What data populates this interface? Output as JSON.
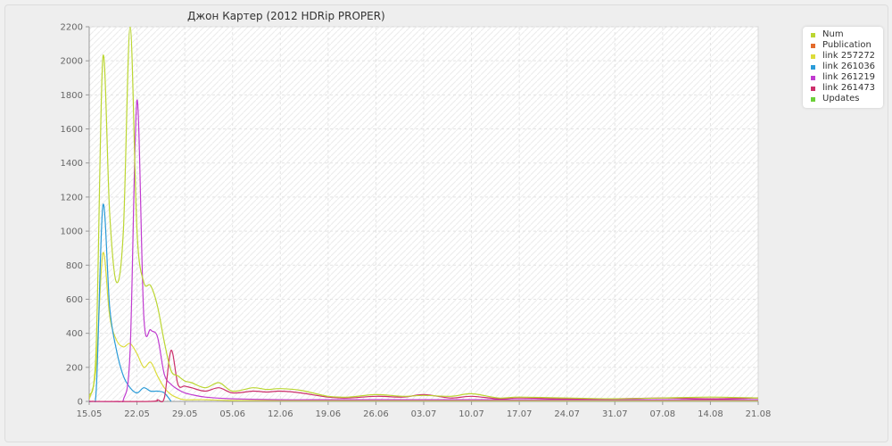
{
  "chart_data": {
    "type": "line",
    "title": "Джон Картер (2012 HDRip PROPER)",
    "xlabel": "",
    "ylabel": "",
    "x_tick_labels": [
      "15.05",
      "22.05",
      "29.05",
      "05.06",
      "12.06",
      "19.06",
      "26.06",
      "03.07",
      "10.07",
      "17.07",
      "24.07",
      "31.07",
      "07.08",
      "14.08",
      "21.08"
    ],
    "y_ticks": [
      0,
      200,
      400,
      600,
      800,
      1000,
      1200,
      1400,
      1600,
      1800,
      2000,
      2200
    ],
    "ylim": [
      0,
      2200
    ],
    "x_domain": [
      "15.05",
      "21.08"
    ],
    "grid": true,
    "legend_position": "top-right",
    "series": [
      {
        "name": "Num",
        "color": "#bbd631",
        "x": [
          "15.05",
          "16.05",
          "17.05",
          "18.05",
          "19.05",
          "20.05",
          "21.05",
          "22.05",
          "23.05",
          "24.05",
          "25.05",
          "26.05",
          "27.05",
          "28.05",
          "29.05",
          "30.05",
          "01.06",
          "03.06",
          "05.06",
          "08.06",
          "10.06",
          "12.06",
          "15.06",
          "19.06",
          "22.06",
          "26.06",
          "30.06",
          "03.07",
          "07.07",
          "10.07",
          "14.07",
          "17.07",
          "24.07",
          "31.07",
          "07.08",
          "14.08",
          "21.08"
        ],
        "values": [
          30,
          300,
          2020,
          1100,
          700,
          1000,
          2200,
          1000,
          700,
          680,
          560,
          350,
          180,
          150,
          120,
          110,
          80,
          110,
          60,
          80,
          70,
          75,
          65,
          30,
          25,
          40,
          30,
          35,
          30,
          45,
          20,
          25,
          20,
          15,
          20,
          25,
          20
        ]
      },
      {
        "name": "Publication",
        "color": "#e36b2c",
        "x": [],
        "values": []
      },
      {
        "name": "link 257272",
        "color": "#dcdc3a",
        "x": [
          "15.05",
          "16.05",
          "17.05",
          "18.05",
          "19.05",
          "20.05",
          "21.05",
          "22.05",
          "23.05",
          "24.05",
          "25.05",
          "26.05",
          "27.05",
          "28.05",
          "29.05",
          "01.06",
          "05.06",
          "12.06",
          "19.06",
          "26.06",
          "03.07",
          "10.07",
          "17.07",
          "24.07",
          "31.07",
          "07.08",
          "14.08",
          "21.08"
        ],
        "values": [
          10,
          200,
          870,
          500,
          360,
          320,
          340,
          280,
          200,
          230,
          150,
          80,
          40,
          20,
          10,
          10,
          5,
          5,
          5,
          5,
          5,
          5,
          5,
          5,
          5,
          5,
          5,
          5
        ]
      },
      {
        "name": "link 261036",
        "color": "#2a9bd8",
        "x": [
          "15.05",
          "16.05",
          "17.05",
          "18.05",
          "19.05",
          "20.05",
          "21.05",
          "22.05",
          "23.05",
          "24.05",
          "25.05",
          "26.05",
          "27.05"
        ],
        "values": [
          0,
          50,
          1150,
          550,
          300,
          150,
          80,
          50,
          80,
          60,
          60,
          50,
          0
        ]
      },
      {
        "name": "link 261219",
        "color": "#c03bd0",
        "x": [
          "15.05",
          "19.05",
          "20.05",
          "21.05",
          "22.05",
          "23.05",
          "24.05",
          "25.05",
          "26.05",
          "27.05",
          "28.05",
          "29.05",
          "30.05",
          "01.06",
          "05.06",
          "12.06",
          "19.06",
          "26.06",
          "03.07",
          "10.07",
          "17.07",
          "24.07",
          "31.07",
          "07.08",
          "14.08",
          "21.08"
        ],
        "values": [
          0,
          0,
          10,
          300,
          1770,
          500,
          420,
          380,
          160,
          100,
          70,
          50,
          40,
          25,
          15,
          10,
          10,
          10,
          10,
          10,
          10,
          10,
          10,
          10,
          10,
          10
        ]
      },
      {
        "name": "link 261473",
        "color": "#cc2f6b",
        "x": [
          "15.05",
          "24.05",
          "25.05",
          "26.05",
          "27.05",
          "28.05",
          "29.05",
          "30.05",
          "01.06",
          "03.06",
          "05.06",
          "08.06",
          "10.06",
          "12.06",
          "15.06",
          "19.06",
          "22.06",
          "26.06",
          "30.06",
          "03.07",
          "07.07",
          "10.07",
          "14.07",
          "17.07",
          "24.07",
          "31.07",
          "07.08",
          "14.08",
          "21.08"
        ],
        "values": [
          0,
          0,
          10,
          20,
          300,
          100,
          90,
          80,
          60,
          80,
          50,
          60,
          55,
          60,
          50,
          25,
          20,
          30,
          25,
          40,
          20,
          30,
          15,
          20,
          15,
          15,
          20,
          15,
          20
        ]
      },
      {
        "name": "Updates",
        "color": "#6ccf38",
        "x": [],
        "values": []
      }
    ]
  }
}
